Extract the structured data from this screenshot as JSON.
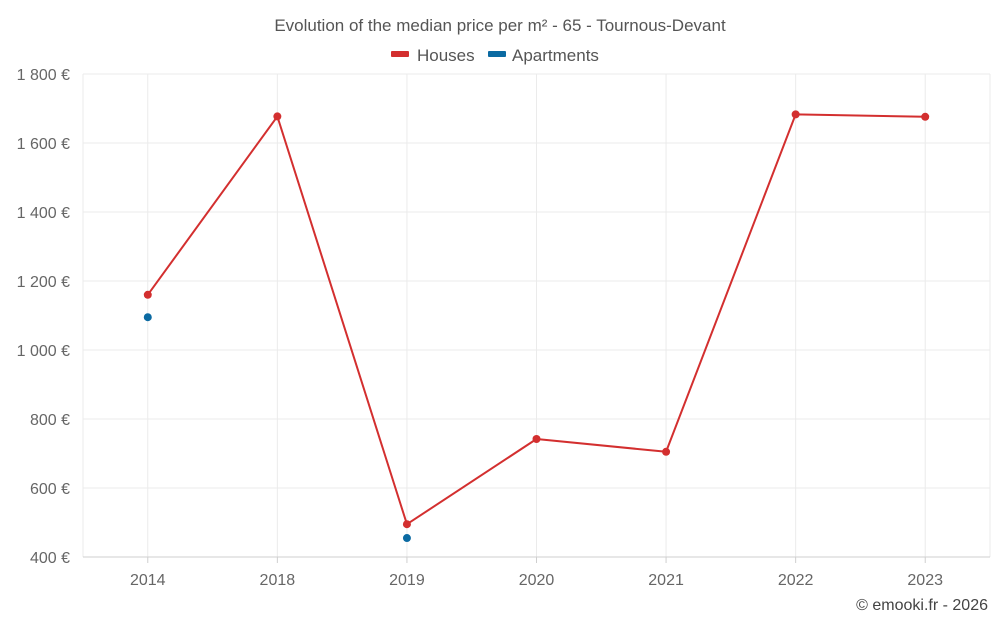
{
  "chart_data": {
    "type": "line",
    "title": "Evolution of the median price per m² - 65 - Tournous-Devant",
    "categories": [
      "2014",
      "2018",
      "2019",
      "2020",
      "2021",
      "2022",
      "2023"
    ],
    "series": [
      {
        "name": "Houses",
        "color": "#d32f2f",
        "connected": true,
        "values": [
          1160,
          1677,
          495,
          742,
          705,
          1683,
          1676
        ]
      },
      {
        "name": "Apartments",
        "color": "#0b6aa2",
        "connected": false,
        "values": [
          1095,
          null,
          455,
          null,
          null,
          null,
          null
        ]
      }
    ],
    "ylim": [
      400,
      1800
    ],
    "yticks": [
      400,
      600,
      800,
      1000,
      1200,
      1400,
      1600,
      1800
    ],
    "ytick_labels": [
      "400 €",
      "600 €",
      "800 €",
      "1 000 €",
      "1 200 €",
      "1 400 €",
      "1 600 €",
      "1 800 €"
    ],
    "xlabel": "",
    "ylabel": "",
    "grid": true,
    "legend_position": "top-center"
  },
  "credit": "© emooki.fr - 2026"
}
